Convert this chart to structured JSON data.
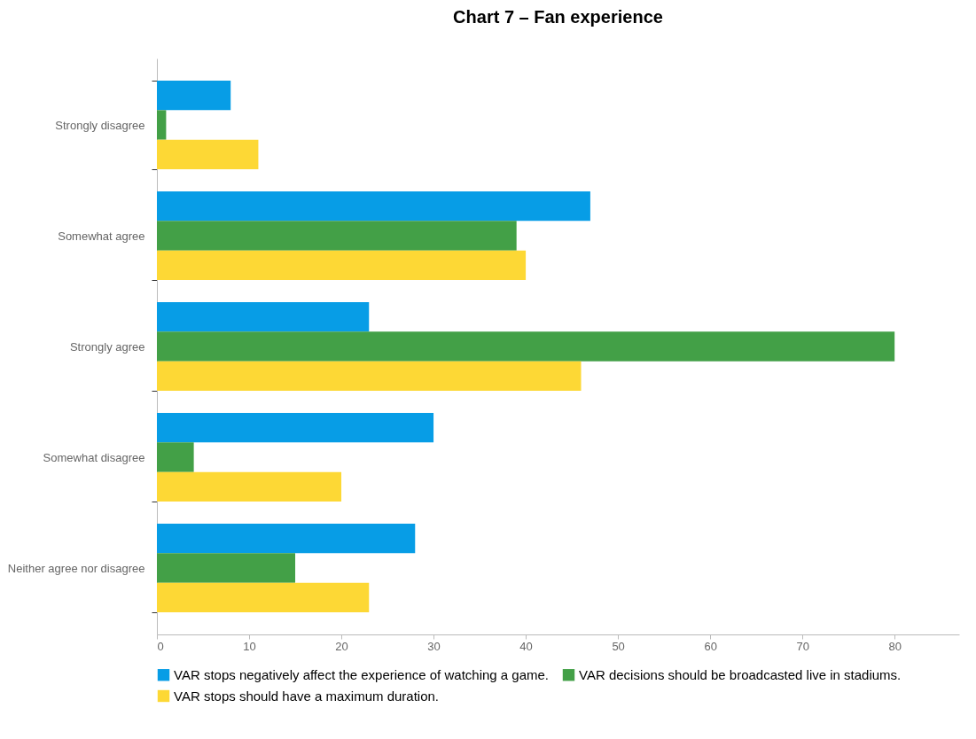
{
  "chart_data": {
    "type": "bar",
    "orientation": "horizontal",
    "title": "Chart 7 – Fan experience",
    "categories": [
      "Strongly disagree",
      "Somewhat agree",
      "Strongly agree",
      "Somewhat disagree",
      "Neither agree nor disagree"
    ],
    "series": [
      {
        "name": "VAR stops negatively affect the experience of watching a game.",
        "color": "#079de6",
        "values": [
          8,
          47,
          23,
          30,
          28
        ]
      },
      {
        "name": "VAR decisions should be broadcasted live in stadiums.",
        "color": "#43a047",
        "values": [
          1,
          39,
          80,
          4,
          15
        ]
      },
      {
        "name": "VAR stops should have a maximum duration.",
        "color": "#fdd835",
        "values": [
          11,
          40,
          46,
          20,
          23
        ]
      }
    ],
    "xlim": [
      0,
      87
    ],
    "xticks": [
      0,
      10,
      20,
      30,
      40,
      50,
      60,
      70,
      80
    ],
    "grid": false,
    "legend": "bottom"
  }
}
